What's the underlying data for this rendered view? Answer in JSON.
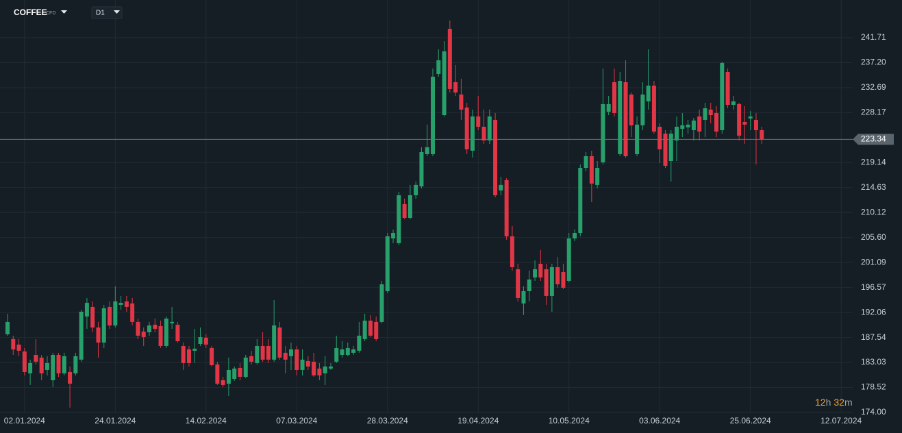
{
  "chart_data": {
    "type": "candlestick",
    "symbol": "COFFEE",
    "instrument_type": "CFD",
    "timeframe": "D1",
    "countdown": [
      "12",
      "h",
      "32",
      "m"
    ],
    "up_color": "#27a06c",
    "down_color": "#e13646",
    "grid": true,
    "categories": [
      null,
      null,
      null,
      "02.01.2024",
      null,
      null,
      null,
      null,
      null,
      null,
      null,
      null,
      null,
      null,
      null,
      null,
      null,
      null,
      null,
      "24.01.2024",
      null,
      null,
      null,
      null,
      null,
      null,
      null,
      null,
      null,
      null,
      null,
      null,
      null,
      null,
      null,
      "14.02.2024",
      null,
      null,
      null,
      null,
      null,
      null,
      null,
      null,
      null,
      null,
      null,
      null,
      null,
      null,
      null,
      "07.03.2024",
      null,
      null,
      null,
      null,
      null,
      null,
      null,
      null,
      null,
      null,
      null,
      null,
      null,
      null,
      null,
      "28.03.2024",
      null,
      null,
      null,
      null,
      null,
      null,
      null,
      null,
      null,
      null,
      null,
      null,
      null,
      null,
      null,
      "19.04.2024",
      null,
      null,
      null,
      null,
      null,
      null,
      null,
      null,
      null,
      null,
      null,
      null,
      null,
      null,
      null,
      "10.05.2024",
      null,
      null,
      null,
      null,
      null,
      null,
      null,
      null,
      null,
      null,
      null,
      null,
      null,
      null,
      null,
      "03.06.2024",
      null,
      null,
      null,
      null,
      null,
      null,
      null,
      null,
      null,
      null,
      null,
      null,
      null,
      null,
      null,
      "25.06.2024",
      null,
      null,
      null,
      null,
      null,
      null,
      null,
      null,
      null,
      null,
      null,
      null,
      null,
      null,
      null,
      "12.07.2024"
    ],
    "open": [
      188.12,
      187.25,
      186.26,
      185.02,
      181.06,
      184.4,
      183.91,
      181.68,
      179.82,
      184.4,
      181.06,
      181.31,
      181.06,
      183.54,
      191.34,
      193.07,
      189.35,
      186.63,
      193.07,
      189.72,
      193.44,
      194.06,
      193.69,
      190.35,
      188.61,
      188.49,
      189.85,
      189.6,
      186.01,
      190.1,
      189.85,
      186.01,
      185.39,
      185.15,
      186.38,
      187.5,
      185.64,
      182.67,
      179.82,
      179.2,
      180.07,
      182.05,
      180.44,
      184.16,
      182.92,
      186.01,
      186.01,
      183.54,
      189.35,
      184.78,
      184.16,
      185.39,
      181.68,
      183.29,
      183.17,
      181.93,
      181.06,
      181.93,
      183.17,
      184.4,
      184.4,
      184.78,
      185.15,
      187.25,
      190.59,
      190.35,
      190.35,
      195.91,
      205.44,
      204.58,
      211.63,
      209.16,
      213.24,
      214.85,
      220.67,
      220.67,
      235.15,
      227.72,
      243.32,
      233.67,
      231.44,
      229.09,
      221.29,
      227.48,
      225.62,
      223.14,
      226.86,
      214.11,
      215.97,
      205.82,
      199.87,
      193.69,
      195.91,
      198.39,
      200.86,
      199.87,
      195.05,
      200.25,
      199.38,
      197.77,
      205.44,
      206.43,
      218.19,
      220.3,
      215.11,
      219.19,
      228.34,
      233.67,
      220.67,
      233.67,
      231.44,
      220.67,
      225.87,
      230.2,
      233.05,
      225.62,
      224.38,
      219.43,
      223.14,
      225.25,
      225.5,
      225.0,
      227.48,
      226.86,
      228.72,
      228.1,
      225.0,
      235.52,
      229.58,
      229.71,
      226.49,
      227.11,
      226.86,
      225.0,
      null,
      null,
      null,
      null,
      null,
      null,
      null,
      null,
      null,
      null,
      null,
      null,
      null,
      null
    ],
    "high": [
      191.83,
      187.87,
      187.25,
      185.64,
      183.54,
      187.25,
      184.4,
      184.16,
      184.78,
      184.78,
      184.78,
      182.3,
      184.78,
      192.57,
      194.68,
      194.06,
      190.35,
      193.44,
      194.06,
      196.78,
      195.05,
      195.05,
      194.68,
      190.96,
      189.35,
      190.35,
      190.96,
      190.59,
      191.34,
      193.07,
      190.35,
      186.63,
      186.01,
      189.11,
      189.35,
      188.12,
      186.01,
      183.17,
      180.44,
      183.91,
      182.3,
      182.92,
      184.4,
      185.15,
      187.25,
      188.49,
      187.25,
      194.3,
      190.35,
      186.01,
      186.63,
      186.01,
      185.39,
      184.16,
      184.78,
      182.92,
      184.16,
      182.92,
      187.87,
      186.88,
      186.63,
      186.01,
      190.35,
      191.83,
      191.59,
      191.34,
      197.77,
      206.43,
      207.05,
      213.86,
      212.62,
      215.11,
      215.72,
      221.91,
      226.0,
      236.14,
      239.61,
      241.09,
      244.81,
      236.76,
      234.29,
      229.95,
      228.72,
      231.19,
      228.72,
      228.72,
      228.1,
      216.58,
      216.34,
      207.67,
      200.86,
      196.78,
      199.63,
      201.48,
      203.34,
      200.86,
      200.86,
      202.1,
      200.86,
      206.43,
      207.05,
      218.81,
      221.04,
      221.29,
      219.43,
      236.14,
      231.19,
      236.14,
      235.52,
      237.63,
      231.81,
      227.48,
      233.67,
      239.61,
      233.91,
      226.24,
      225.0,
      225.0,
      227.48,
      228.1,
      226.86,
      227.23,
      228.72,
      229.95,
      229.95,
      229.33,
      237.38,
      236.14,
      231.19,
      229.95,
      229.33,
      228.47,
      228.1,
      225.62,
      null,
      null,
      null,
      null,
      null,
      null,
      null,
      null,
      null,
      null,
      null,
      null,
      null,
      null
    ],
    "low": [
      187.87,
      184.4,
      184.16,
      180.69,
      178.96,
      182.67,
      179.82,
      180.69,
      178.59,
      180.44,
      180.69,
      174.87,
      180.69,
      183.17,
      189.11,
      188.49,
      183.91,
      185.64,
      189.11,
      189.35,
      192.57,
      192.2,
      189.72,
      187.25,
      186.01,
      187.87,
      188.49,
      185.64,
      185.64,
      189.11,
      186.63,
      181.68,
      182.3,
      182.92,
      186.01,
      185.64,
      182.3,
      178.96,
      178.59,
      176.97,
      179.7,
      179.82,
      180.19,
      182.67,
      182.67,
      183.17,
      182.92,
      183.17,
      183.54,
      181.06,
      181.68,
      180.69,
      180.69,
      181.68,
      180.44,
      179.82,
      178.96,
      181.68,
      182.92,
      183.91,
      184.16,
      184.4,
      184.78,
      186.88,
      187.62,
      186.88,
      190.1,
      195.54,
      204.58,
      204.21,
      208.91,
      208.91,
      212.62,
      214.48,
      220.3,
      220.3,
      234.66,
      227.48,
      231.81,
      231.19,
      226.86,
      220.67,
      220.05,
      225.0,
      222.53,
      222.53,
      212.87,
      213.24,
      205.2,
      199.63,
      194.06,
      191.59,
      194.06,
      197.77,
      197.77,
      193.44,
      192.2,
      196.53,
      196.28,
      197.52,
      204.95,
      205.82,
      217.57,
      212.0,
      214.48,
      218.81,
      227.72,
      227.48,
      220.3,
      220.05,
      223.76,
      220.3,
      225.0,
      228.72,
      224.38,
      219.06,
      218.19,
      215.72,
      219.43,
      223.76,
      224.38,
      223.14,
      223.14,
      223.76,
      226.24,
      223.76,
      224.38,
      228.96,
      228.72,
      223.14,
      222.53,
      225.0,
      218.81,
      222.53,
      null,
      null,
      null,
      null,
      null,
      null,
      null,
      null,
      null,
      null,
      null,
      null,
      null,
      null
    ],
    "close": [
      190.35,
      185.39,
      185.15,
      181.31,
      182.92,
      183.17,
      181.06,
      182.92,
      184.4,
      181.06,
      184.16,
      179.2,
      184.16,
      192.2,
      193.81,
      189.35,
      186.63,
      192.82,
      189.72,
      194.06,
      193.81,
      193.07,
      190.35,
      187.87,
      187.62,
      189.72,
      189.11,
      186.01,
      190.96,
      190.35,
      186.88,
      182.92,
      182.92,
      185.52,
      187.62,
      186.26,
      182.55,
      179.2,
      178.96,
      181.68,
      181.93,
      180.44,
      183.91,
      183.17,
      186.01,
      183.54,
      183.54,
      189.72,
      183.91,
      183.54,
      185.39,
      181.68,
      183.54,
      182.3,
      180.69,
      180.69,
      182.3,
      182.3,
      185.64,
      185.39,
      185.64,
      185.39,
      187.87,
      190.59,
      187.87,
      187.25,
      197.15,
      205.82,
      206.43,
      213.24,
      209.16,
      213.24,
      215.11,
      221.04,
      221.91,
      234.66,
      237.63,
      239.24,
      232.43,
      231.81,
      228.72,
      221.54,
      227.48,
      225.62,
      223.14,
      227.48,
      213.24,
      215.11,
      205.82,
      200.25,
      194.68,
      195.91,
      198.02,
      199.87,
      198.39,
      195.05,
      200.25,
      197.15,
      196.53,
      205.44,
      206.43,
      218.19,
      220.3,
      215.35,
      218.19,
      229.71,
      229.71,
      228.1,
      233.91,
      220.3,
      225.87,
      226.0,
      231.44,
      233.05,
      224.75,
      221.54,
      218.57,
      224.38,
      225.62,
      225.87,
      226.0,
      226.74,
      224.75,
      228.96,
      227.72,
      224.75,
      237.13,
      229.58,
      230.2,
      224.01,
      226.0,
      227.48,
      225.0,
      223.34,
      null,
      null,
      null,
      null,
      null,
      null,
      null,
      null,
      null,
      null,
      null,
      null,
      null,
      null
    ],
    "ylim": [
      174.0,
      248.52
    ],
    "yticks": [
      {
        "value": 174,
        "label": "174.00"
      },
      178.52,
      183.03,
      187.54,
      192.06,
      196.57,
      201.09,
      {
        "value": 205.6,
        "label": "205.60"
      },
      210.12,
      214.63,
      219.14,
      228.17,
      232.69,
      {
        "value": 237.2,
        "label": "237.20"
      },
      241.71
    ]
  }
}
